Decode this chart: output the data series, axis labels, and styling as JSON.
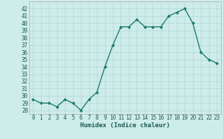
{
  "x": [
    0,
    1,
    2,
    3,
    4,
    5,
    6,
    7,
    8,
    9,
    10,
    11,
    12,
    13,
    14,
    15,
    16,
    17,
    18,
    19,
    20,
    21,
    22,
    23
  ],
  "y": [
    29.5,
    29.0,
    29.0,
    28.5,
    29.5,
    29.0,
    28.0,
    29.5,
    30.5,
    34.0,
    37.0,
    39.5,
    39.5,
    40.5,
    39.5,
    39.5,
    39.5,
    41.0,
    41.5,
    42.0,
    40.0,
    36.0,
    35.0,
    34.5
  ],
  "line_color": "#1a7a6e",
  "marker": "D",
  "markersize": 2,
  "linewidth": 1.0,
  "xlabel": "Humidex (Indice chaleur)",
  "ylabel": "",
  "xlim": [
    -0.5,
    23.5
  ],
  "ylim": [
    27.5,
    43.0
  ],
  "yticks": [
    28,
    29,
    30,
    31,
    32,
    33,
    34,
    35,
    36,
    37,
    38,
    39,
    40,
    41,
    42
  ],
  "xticks": [
    0,
    1,
    2,
    3,
    4,
    5,
    6,
    7,
    8,
    9,
    10,
    11,
    12,
    13,
    14,
    15,
    16,
    17,
    18,
    19,
    20,
    21,
    22,
    23
  ],
  "bg_color": "#ceecea",
  "grid_color": "#aed8d4",
  "tick_fontsize": 5.5,
  "xlabel_fontsize": 6.5
}
